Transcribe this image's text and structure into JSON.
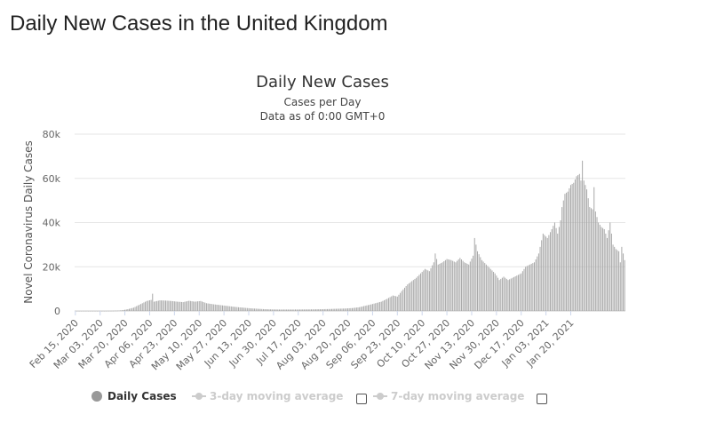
{
  "page": {
    "title": "Daily New Cases in the United Kingdom"
  },
  "colors": {
    "bars": "#a8a8a8",
    "grid": "#e6e6e6",
    "text": "#333333",
    "legend_inactive": "#cccccc",
    "legend_active_dot": "#999999"
  },
  "chart_data": {
    "type": "bar",
    "title": "Daily New Cases",
    "subtitle_line1": "Cases per Day",
    "subtitle_line2": "Data as of 0:00 GMT+0",
    "ylabel": "Novel Coronavirus Daily Cases",
    "xlabel": "",
    "ylim": [
      0,
      80000
    ],
    "y_ticks": [
      {
        "value": 0,
        "label": "0"
      },
      {
        "value": 20000,
        "label": "20k"
      },
      {
        "value": 40000,
        "label": "40k"
      },
      {
        "value": 60000,
        "label": "60k"
      },
      {
        "value": 80000,
        "label": "80k"
      }
    ],
    "x_tick_labels": [
      "Feb 15, 2020",
      "Mar 03, 2020",
      "Mar 20, 2020",
      "Apr 06, 2020",
      "Apr 23, 2020",
      "May 10, 2020",
      "May 27, 2020",
      "Jun 13, 2020",
      "Jun 30, 2020",
      "Jul 17, 2020",
      "Aug 03, 2020",
      "Aug 20, 2020",
      "Sep 06, 2020",
      "Sep 23, 2020",
      "Oct 10, 2020",
      "Oct 27, 2020",
      "Nov 13, 2020",
      "Nov 30, 2020",
      "Dec 17, 2020",
      "Jan 03, 2021",
      "Jan 20, 2021"
    ],
    "x_tick_interval_days": 17,
    "first_date": "Feb 15, 2020",
    "series": [
      {
        "name": "Daily Cases",
        "anchors": [
          [
            0,
            0
          ],
          [
            20,
            5
          ],
          [
            25,
            50
          ],
          [
            29,
            150
          ],
          [
            32,
            300
          ],
          [
            36,
            800
          ],
          [
            40,
            1500
          ],
          [
            43,
            2500
          ],
          [
            46,
            3500
          ],
          [
            49,
            4500
          ],
          [
            52,
            5000
          ],
          [
            53,
            7800
          ],
          [
            54,
            4200
          ],
          [
            58,
            4800
          ],
          [
            62,
            4700
          ],
          [
            66,
            4500
          ],
          [
            70,
            4200
          ],
          [
            74,
            4000
          ],
          [
            78,
            4600
          ],
          [
            82,
            4200
          ],
          [
            86,
            4500
          ],
          [
            90,
            3500
          ],
          [
            95,
            3000
          ],
          [
            100,
            2600
          ],
          [
            105,
            2200
          ],
          [
            110,
            1800
          ],
          [
            115,
            1500
          ],
          [
            120,
            1200
          ],
          [
            125,
            1000
          ],
          [
            130,
            800
          ],
          [
            135,
            700
          ],
          [
            140,
            650
          ],
          [
            150,
            650
          ],
          [
            160,
            700
          ],
          [
            170,
            800
          ],
          [
            175,
            900
          ],
          [
            180,
            1000
          ],
          [
            185,
            1100
          ],
          [
            190,
            1300
          ],
          [
            195,
            1700
          ],
          [
            198,
            2200
          ],
          [
            202,
            2800
          ],
          [
            206,
            3500
          ],
          [
            210,
            4200
          ],
          [
            214,
            5500
          ],
          [
            218,
            7000
          ],
          [
            221,
            6500
          ],
          [
            224,
            9000
          ],
          [
            228,
            12000
          ],
          [
            231,
            13500
          ],
          [
            234,
            15000
          ],
          [
            237,
            17000
          ],
          [
            240,
            19000
          ],
          [
            243,
            18000
          ],
          [
            246,
            22000
          ],
          [
            247,
            26000
          ],
          [
            249,
            21000
          ],
          [
            252,
            22000
          ],
          [
            255,
            23500
          ],
          [
            258,
            23000
          ],
          [
            261,
            22000
          ],
          [
            264,
            24000
          ],
          [
            267,
            22000
          ],
          [
            270,
            21000
          ],
          [
            273,
            25000
          ],
          [
            274,
            33000
          ],
          [
            276,
            27000
          ],
          [
            279,
            23000
          ],
          [
            282,
            21000
          ],
          [
            285,
            19000
          ],
          [
            288,
            17000
          ],
          [
            291,
            14000
          ],
          [
            294,
            15500
          ],
          [
            297,
            14000
          ],
          [
            300,
            15000
          ],
          [
            303,
            16000
          ],
          [
            306,
            17000
          ],
          [
            309,
            20000
          ],
          [
            312,
            21000
          ],
          [
            315,
            22000
          ],
          [
            318,
            26000
          ],
          [
            321,
            35000
          ],
          [
            324,
            33000
          ],
          [
            327,
            37000
          ],
          [
            329,
            40000
          ],
          [
            331,
            35000
          ],
          [
            333,
            41000
          ],
          [
            334,
            47000
          ],
          [
            336,
            53000
          ],
          [
            338,
            54000
          ],
          [
            340,
            57000
          ],
          [
            342,
            58000
          ],
          [
            344,
            61000
          ],
          [
            346,
            62000
          ],
          [
            347,
            59000
          ],
          [
            348,
            68000
          ],
          [
            349,
            59000
          ],
          [
            351,
            55000
          ],
          [
            353,
            47000
          ],
          [
            355,
            46000
          ],
          [
            356,
            56000
          ],
          [
            357,
            45000
          ],
          [
            359,
            40000
          ],
          [
            361,
            38000
          ],
          [
            363,
            37000
          ],
          [
            365,
            33000
          ],
          [
            367,
            40000
          ],
          [
            369,
            30000
          ],
          [
            371,
            28000
          ],
          [
            373,
            27000
          ],
          [
            374,
            22000
          ],
          [
            375,
            29000
          ],
          [
            377,
            23000
          ]
        ]
      }
    ],
    "legend": [
      {
        "name": "Daily Cases",
        "active": true
      },
      {
        "name": "3-day moving average",
        "active": false
      },
      {
        "name": "7-day moving average",
        "active": false
      }
    ]
  }
}
